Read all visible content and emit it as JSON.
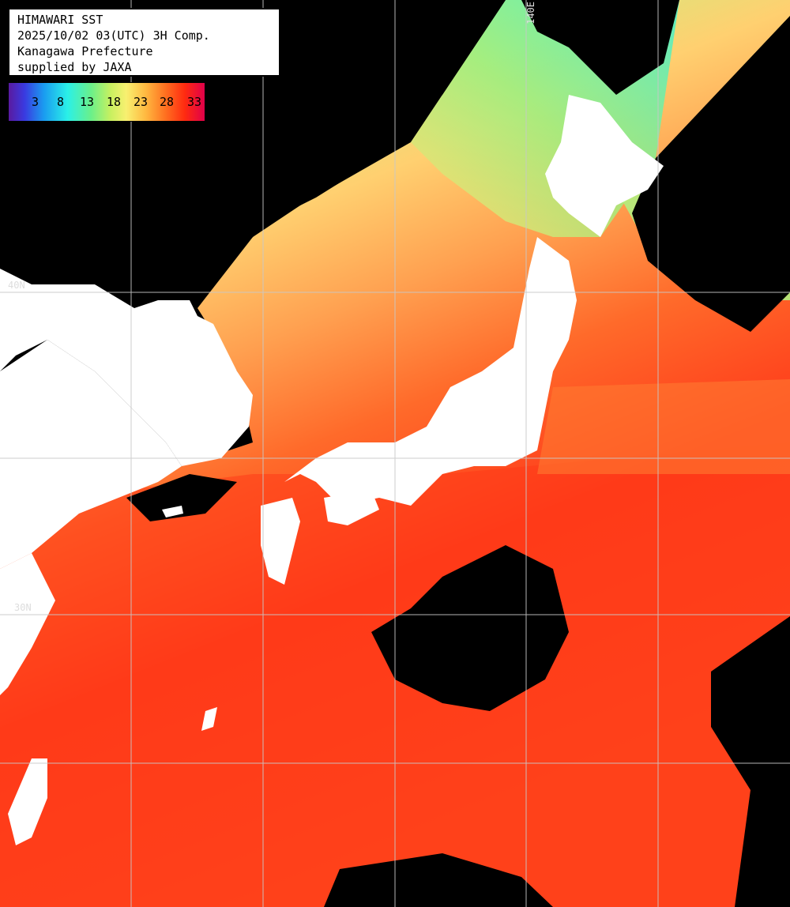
{
  "info": {
    "line1": "HIMAWARI SST",
    "line2": "2025/10/02 03(UTC) 3H Comp.",
    "line3": "Kanagawa Prefecture",
    "line4": "supplied by JAXA"
  },
  "legend": {
    "ticks": [
      "3",
      "8",
      "13",
      "18",
      "23",
      "28",
      "33"
    ]
  },
  "grid": {
    "lon_label": "140E",
    "lat_label_40": "40N",
    "lat_label_30": "30N"
  },
  "colors": {
    "land": "#ffffff",
    "no_data": "#000000",
    "grid": "#c8c8c8"
  }
}
